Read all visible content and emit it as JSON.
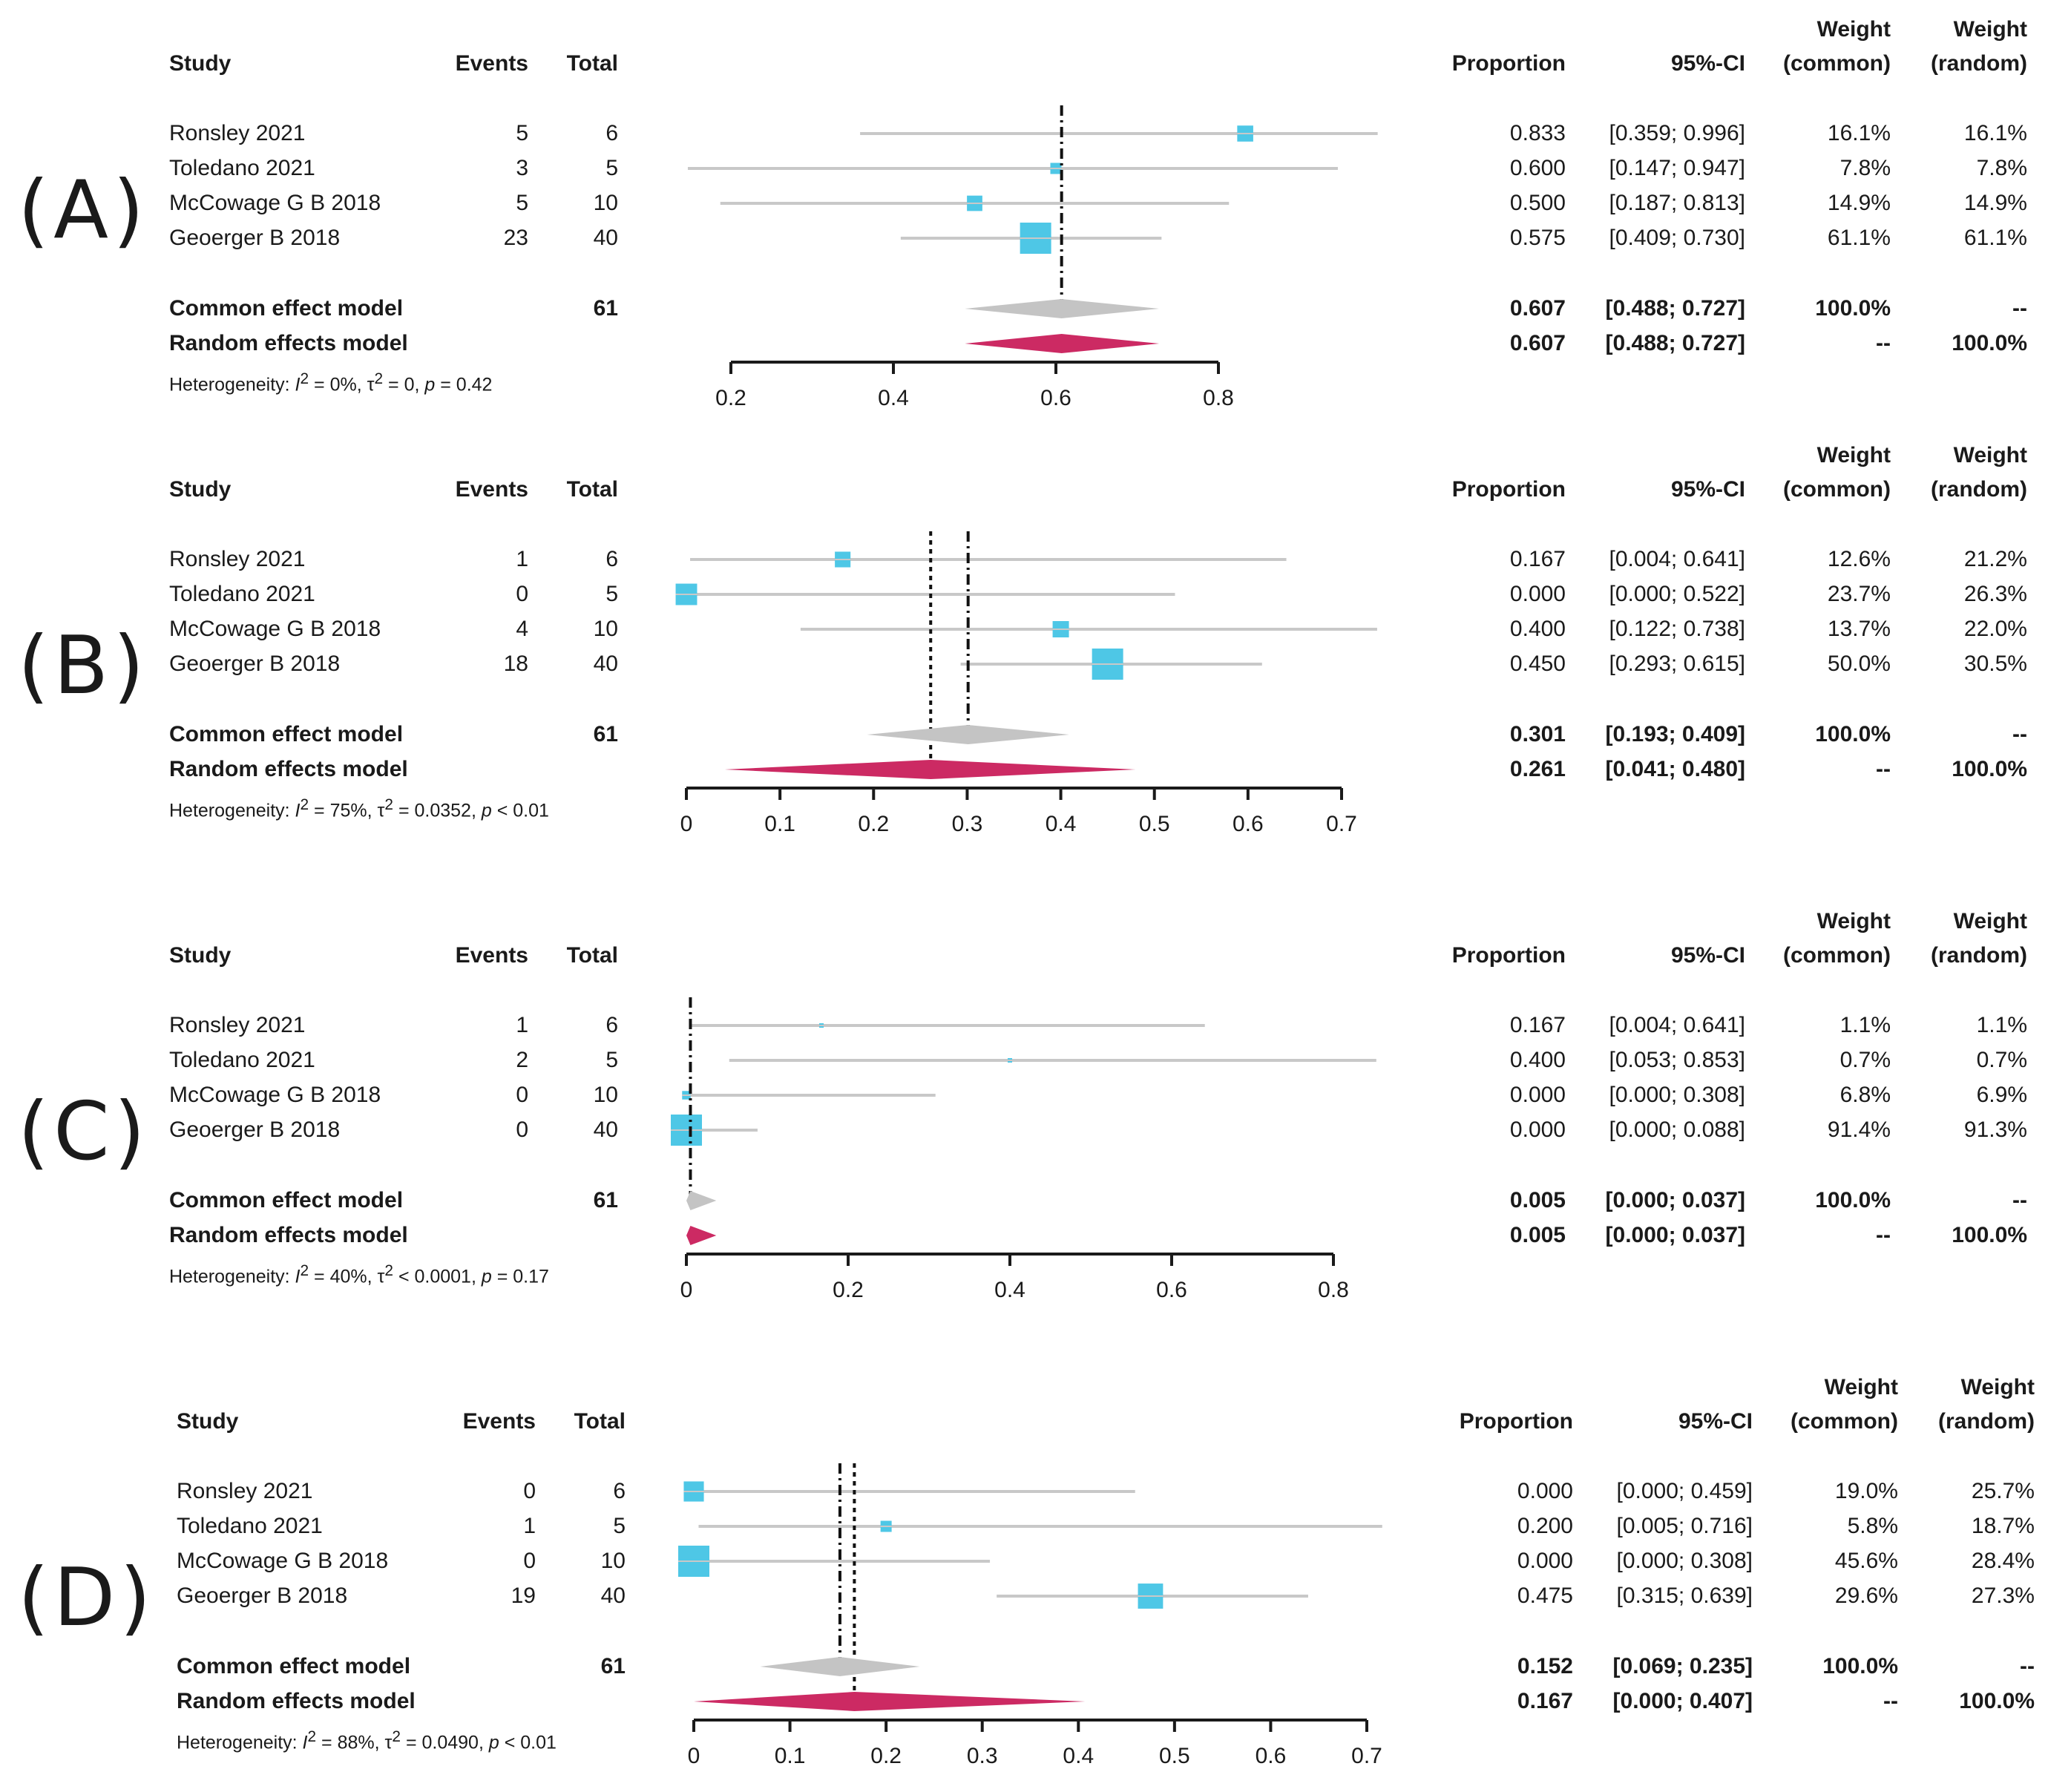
{
  "headers": {
    "study": "Study",
    "events": "Events",
    "total": "Total",
    "proportion": "Proportion",
    "ci": "95%-CI",
    "weight_common_1": "Weight",
    "weight_common_2": "(common)",
    "weight_random_1": "Weight",
    "weight_random_2": "(random)"
  },
  "colors": {
    "study_box": "#4ec7e6",
    "ci_line": "#c8c8c8",
    "common_diamond": "#c4c4c4",
    "random_diamond": "#cc2a63",
    "axis": "#1a1a1a"
  },
  "chart_data": [
    {
      "type": "forest",
      "label": "(A)",
      "xlim": [
        0.2,
        0.8
      ],
      "ticks": [
        "0.2",
        "0.4",
        "0.6",
        "0.8"
      ],
      "common_line": 0.607,
      "random_line": 0.607,
      "studies": [
        {
          "name": "Ronsley 2021",
          "events": "5",
          "total": "6",
          "est": 0.833,
          "lo": 0.359,
          "hi": 0.996,
          "proportion": "0.833",
          "ci": "[0.359; 0.996]",
          "w_common": "16.1%",
          "w_random": "16.1%"
        },
        {
          "name": "Toledano 2021",
          "events": "3",
          "total": "5",
          "est": 0.6,
          "lo": 0.147,
          "hi": 0.947,
          "proportion": "0.600",
          "ci": "[0.147; 0.947]",
          "w_common": "7.8%",
          "w_random": "7.8%"
        },
        {
          "name": "McCowage G B 2018",
          "events": "5",
          "total": "10",
          "est": 0.5,
          "lo": 0.187,
          "hi": 0.813,
          "proportion": "0.500",
          "ci": "[0.187; 0.813]",
          "w_common": "14.9%",
          "w_random": "14.9%"
        },
        {
          "name": "Geoerger B 2018",
          "events": "23",
          "total": "40",
          "est": 0.575,
          "lo": 0.409,
          "hi": 0.73,
          "proportion": "0.575",
          "ci": "[0.409; 0.730]",
          "w_common": "61.1%",
          "w_random": "61.1%"
        }
      ],
      "common": {
        "label": "Common effect model",
        "total": "61",
        "est": 0.607,
        "lo": 0.488,
        "hi": 0.727,
        "proportion": "0.607",
        "ci": "[0.488; 0.727]",
        "w_common": "100.0%",
        "w_random": "--"
      },
      "random": {
        "label": "Random effects model",
        "est": 0.607,
        "lo": 0.488,
        "hi": 0.727,
        "proportion": "0.607",
        "ci": "[0.488; 0.727]",
        "w_common": "--",
        "w_random": "100.0%"
      },
      "heterogeneity": {
        "prefix": "Heterogeneity: ",
        "i2_value": " = 0%, ",
        "tau2_value": " = 0, ",
        "p_value": " = 0.42"
      }
    },
    {
      "type": "forest",
      "label": "(B)",
      "xlim": [
        0,
        0.7
      ],
      "ticks": [
        "0",
        "0.1",
        "0.2",
        "0.3",
        "0.4",
        "0.5",
        "0.6",
        "0.7"
      ],
      "common_line": 0.301,
      "random_line": 0.261,
      "studies": [
        {
          "name": "Ronsley 2021",
          "events": "1",
          "total": "6",
          "est": 0.167,
          "lo": 0.004,
          "hi": 0.641,
          "proportion": "0.167",
          "ci": "[0.004; 0.641]",
          "w_common": "12.6%",
          "w_random": "21.2%"
        },
        {
          "name": "Toledano 2021",
          "events": "0",
          "total": "5",
          "est": 0.0,
          "lo": 0.0,
          "hi": 0.522,
          "proportion": "0.000",
          "ci": "[0.000; 0.522]",
          "w_common": "23.7%",
          "w_random": "26.3%"
        },
        {
          "name": "McCowage G B 2018",
          "events": "4",
          "total": "10",
          "est": 0.4,
          "lo": 0.122,
          "hi": 0.738,
          "proportion": "0.400",
          "ci": "[0.122; 0.738]",
          "w_common": "13.7%",
          "w_random": "22.0%"
        },
        {
          "name": "Geoerger B 2018",
          "events": "18",
          "total": "40",
          "est": 0.45,
          "lo": 0.293,
          "hi": 0.615,
          "proportion": "0.450",
          "ci": "[0.293; 0.615]",
          "w_common": "50.0%",
          "w_random": "30.5%"
        }
      ],
      "common": {
        "label": "Common effect model",
        "total": "61",
        "est": 0.301,
        "lo": 0.193,
        "hi": 0.409,
        "proportion": "0.301",
        "ci": "[0.193; 0.409]",
        "w_common": "100.0%",
        "w_random": "--"
      },
      "random": {
        "label": "Random effects model",
        "est": 0.261,
        "lo": 0.041,
        "hi": 0.48,
        "proportion": "0.261",
        "ci": "[0.041; 0.480]",
        "w_common": "--",
        "w_random": "100.0%"
      },
      "heterogeneity": {
        "prefix": "Heterogeneity: ",
        "i2_value": " = 75%, ",
        "tau2_value": " = 0.0352, ",
        "p_value": " < 0.01"
      }
    },
    {
      "type": "forest",
      "label": "(C)",
      "xlim": [
        0,
        0.8
      ],
      "ticks": [
        "0",
        "0.2",
        "0.4",
        "0.6",
        "0.8"
      ],
      "common_line": 0.005,
      "random_line": 0.005,
      "studies": [
        {
          "name": "Ronsley 2021",
          "events": "1",
          "total": "6",
          "est": 0.167,
          "lo": 0.004,
          "hi": 0.641,
          "proportion": "0.167",
          "ci": "[0.004; 0.641]",
          "w_common": "1.1%",
          "w_random": "1.1%"
        },
        {
          "name": "Toledano 2021",
          "events": "2",
          "total": "5",
          "est": 0.4,
          "lo": 0.053,
          "hi": 0.853,
          "proportion": "0.400",
          "ci": "[0.053; 0.853]",
          "w_common": "0.7%",
          "w_random": "0.7%"
        },
        {
          "name": "McCowage G B 2018",
          "events": "0",
          "total": "10",
          "est": 0.0,
          "lo": 0.0,
          "hi": 0.308,
          "proportion": "0.000",
          "ci": "[0.000; 0.308]",
          "w_common": "6.8%",
          "w_random": "6.9%"
        },
        {
          "name": "Geoerger B 2018",
          "events": "0",
          "total": "40",
          "est": 0.0,
          "lo": 0.0,
          "hi": 0.088,
          "proportion": "0.000",
          "ci": "[0.000; 0.088]",
          "w_common": "91.4%",
          "w_random": "91.3%"
        }
      ],
      "common": {
        "label": "Common effect model",
        "total": "61",
        "est": 0.005,
        "lo": 0.0,
        "hi": 0.037,
        "proportion": "0.005",
        "ci": "[0.000; 0.037]",
        "w_common": "100.0%",
        "w_random": "--"
      },
      "random": {
        "label": "Random effects model",
        "est": 0.005,
        "lo": 0.0,
        "hi": 0.037,
        "proportion": "0.005",
        "ci": "[0.000; 0.037]",
        "w_common": "--",
        "w_random": "100.0%"
      },
      "heterogeneity": {
        "prefix": "Heterogeneity: ",
        "i2_value": " = 40%, ",
        "tau2_value": " < 0.0001, ",
        "p_value": " = 0.17"
      }
    },
    {
      "type": "forest",
      "label": "(D)",
      "xlim": [
        0,
        0.7
      ],
      "ticks": [
        "0",
        "0.1",
        "0.2",
        "0.3",
        "0.4",
        "0.5",
        "0.6",
        "0.7"
      ],
      "common_line": 0.152,
      "random_line": 0.167,
      "studies": [
        {
          "name": "Ronsley 2021",
          "events": "0",
          "total": "6",
          "est": 0.0,
          "lo": 0.0,
          "hi": 0.459,
          "proportion": "0.000",
          "ci": "[0.000; 0.459]",
          "w_common": "19.0%",
          "w_random": "25.7%"
        },
        {
          "name": "Toledano 2021",
          "events": "1",
          "total": "5",
          "est": 0.2,
          "lo": 0.005,
          "hi": 0.716,
          "proportion": "0.200",
          "ci": "[0.005; 0.716]",
          "w_common": "5.8%",
          "w_random": "18.7%"
        },
        {
          "name": "McCowage G B 2018",
          "events": "0",
          "total": "10",
          "est": 0.0,
          "lo": 0.0,
          "hi": 0.308,
          "proportion": "0.000",
          "ci": "[0.000; 0.308]",
          "w_common": "45.6%",
          "w_random": "28.4%"
        },
        {
          "name": "Geoerger B 2018",
          "events": "19",
          "total": "40",
          "est": 0.475,
          "lo": 0.315,
          "hi": 0.639,
          "proportion": "0.475",
          "ci": "[0.315; 0.639]",
          "w_common": "29.6%",
          "w_random": "27.3%"
        }
      ],
      "common": {
        "label": "Common effect model",
        "total": "61",
        "est": 0.152,
        "lo": 0.069,
        "hi": 0.235,
        "proportion": "0.152",
        "ci": "[0.069; 0.235]",
        "w_common": "100.0%",
        "w_random": "--"
      },
      "random": {
        "label": "Random effects model",
        "est": 0.167,
        "lo": 0.0,
        "hi": 0.407,
        "proportion": "0.167",
        "ci": "[0.000; 0.407]",
        "w_common": "--",
        "w_random": "100.0%"
      },
      "heterogeneity": {
        "prefix": "Heterogeneity: ",
        "i2_value": " = 88%, ",
        "tau2_value": " = 0.0490, ",
        "p_value": " < 0.01"
      }
    }
  ]
}
